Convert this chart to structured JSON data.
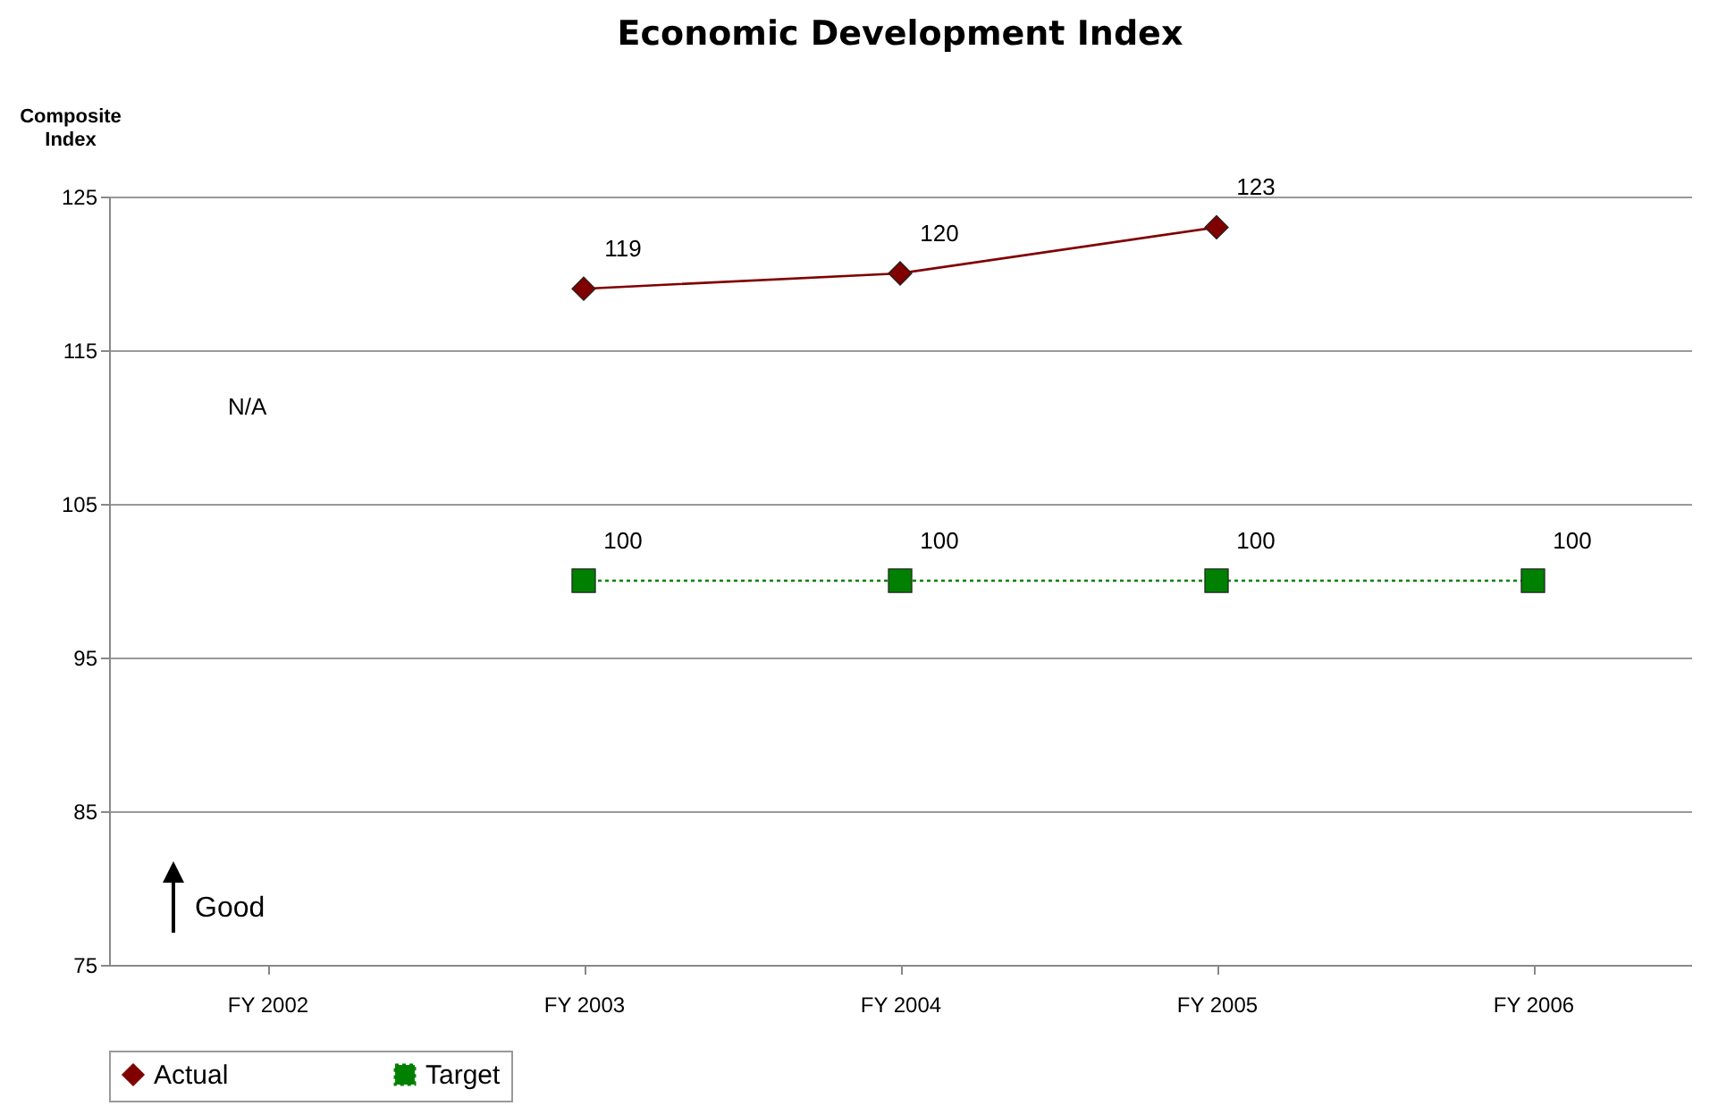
{
  "chart_data": {
    "type": "line",
    "title": "Economic Development Index",
    "ylabel": "Composite Index",
    "categories": [
      "FY 2002",
      "FY 2003",
      "FY 2004",
      "FY 2005",
      "FY 2006"
    ],
    "series": [
      {
        "name": "Actual",
        "color": "#800000",
        "marker": "diamond",
        "line_style": "solid",
        "values": [
          null,
          119,
          120,
          123,
          null
        ]
      },
      {
        "name": "Target",
        "color": "#008000",
        "marker": "square",
        "line_style": "dotted",
        "values": [
          null,
          100,
          100,
          100,
          100
        ]
      }
    ],
    "ylim": [
      75,
      125
    ],
    "yticks": [
      75,
      85,
      95,
      105,
      115,
      125
    ],
    "grid": "y",
    "legend": "bottom",
    "data_labels": true,
    "annotations": [
      "N/A",
      "Good"
    ]
  }
}
